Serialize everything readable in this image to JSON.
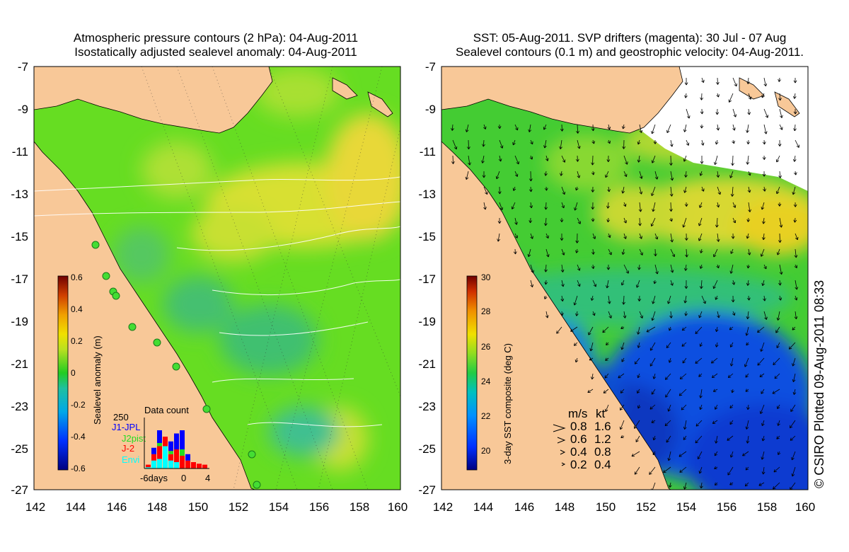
{
  "left_panel": {
    "title_line1": "Atmospheric pressure contours (2 hPa): 04-Aug-2011",
    "title_line2": "Isostatically adjusted sealevel anomaly: 04-Aug-2011",
    "y_ticks": [
      "-7",
      "-9",
      "-11",
      "-13",
      "-15",
      "-17",
      "-19",
      "-21",
      "-23",
      "-25",
      "-27"
    ],
    "x_ticks": [
      "142",
      "144",
      "146",
      "148",
      "150",
      "152",
      "154",
      "156",
      "158",
      "160"
    ],
    "colorbar": {
      "label": "Sealevel anomaly (m)",
      "ticks": [
        "0.6",
        "0.4",
        "0.2",
        "0",
        "-0.2",
        "-0.4",
        "-0.6"
      ],
      "range": [
        -0.6,
        0.6
      ]
    },
    "data_count": {
      "title": "Data count",
      "max_label": "250",
      "x_labels": [
        "-6days",
        "0",
        "4"
      ],
      "legend": [
        {
          "name": "J1-JPL",
          "color": "#0000ff"
        },
        {
          "name": "J2pist",
          "color": "#22dd22"
        },
        {
          "name": "J-2",
          "color": "#ff0000"
        },
        {
          "name": "Envi",
          "color": "#00ffff"
        }
      ]
    }
  },
  "right_panel": {
    "title_line1": "SST: 05-Aug-2011. SVP drifters (magenta): 30 Jul - 07 Aug",
    "title_line2": "Sealevel contours (0.1 m) and geostrophic velocity: 04-Aug-2011.",
    "y_ticks": [
      "-7",
      "-9",
      "-11",
      "-13",
      "-15",
      "-17",
      "-19",
      "-21",
      "-23",
      "-25",
      "-27"
    ],
    "x_ticks": [
      "142",
      "144",
      "146",
      "148",
      "150",
      "152",
      "154",
      "156",
      "158",
      "160"
    ],
    "colorbar": {
      "label": "3-day SST composite (deg C)",
      "ticks": [
        "30",
        "28",
        "26",
        "24",
        "22",
        "20"
      ],
      "range": [
        19,
        30
      ]
    },
    "velocity_legend": {
      "header_ms": "m/s",
      "header_kt": "kt",
      "rows": [
        {
          "ms": "0.8",
          "kt": "1.6"
        },
        {
          "ms": "0.6",
          "kt": "1.2"
        },
        {
          "ms": "0.4",
          "kt": "0.8"
        },
        {
          "ms": "0.2",
          "kt": "0.4"
        }
      ]
    }
  },
  "credit": "© CSIRO Plotted 09-Aug-2011 08:33",
  "colors": {
    "land": "#f8c898",
    "ocean_green": "#66dd22",
    "anomaly_high": "#f0d020",
    "anomaly_low": "#33bb88",
    "sst_warm": "#e8d020",
    "sst_cool": "#0a3ad0"
  }
}
